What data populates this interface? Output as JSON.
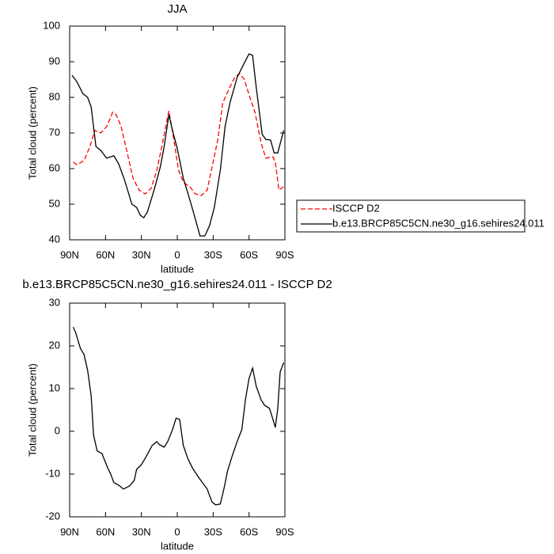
{
  "chart_data": [
    {
      "type": "line",
      "title": "JJA",
      "xlabel": "latitude",
      "ylabel": "Total cloud (percent)",
      "xlim": [
        90,
        -90
      ],
      "ylim": [
        40,
        100
      ],
      "xticks": [
        {
          "value": 90,
          "label": "90N"
        },
        {
          "value": 60,
          "label": "60N"
        },
        {
          "value": 30,
          "label": "30N"
        },
        0,
        {
          "value": -30,
          "label": "30S"
        },
        {
          "value": -60,
          "label": "60S"
        },
        {
          "value": -90,
          "label": "90S"
        }
      ],
      "yticks": [
        40,
        50,
        60,
        70,
        80,
        90,
        100
      ],
      "legend": "right",
      "series": [
        {
          "name": "ISCCP D2",
          "color": "#ff0000",
          "line_style": "dashed",
          "x": [
            87,
            84,
            78,
            73,
            69,
            64,
            59,
            54,
            51,
            47,
            42,
            37,
            32,
            27,
            22,
            17,
            13,
            7,
            3,
            -1,
            -5,
            -11,
            -15,
            -20,
            -25,
            -29,
            -34,
            -38,
            -44,
            -48,
            -52,
            -56,
            -60,
            -65,
            -70,
            -74,
            -80,
            -82,
            -85,
            -89
          ],
          "values": [
            61.8,
            61.1,
            62.2,
            66.2,
            70.7,
            70,
            71.8,
            75.8,
            75.1,
            71.8,
            64.7,
            57.3,
            54,
            52.9,
            54.4,
            59.6,
            66.2,
            76.2,
            68.4,
            59.6,
            56.2,
            54.7,
            52.9,
            52.4,
            54,
            60.2,
            68.4,
            78.4,
            82.9,
            85.6,
            86.7,
            85.1,
            80.7,
            75.8,
            67.3,
            62.9,
            63.3,
            61.8,
            54,
            54.9
          ]
        },
        {
          "name": "b.e13.BRCP85C5CN.ne30_g16.sehires24.011",
          "color": "#000000",
          "line_style": "solid",
          "x": [
            88,
            84,
            79,
            75,
            72,
            70,
            68,
            64,
            59,
            53,
            49,
            44,
            38,
            34,
            31,
            28,
            25,
            19,
            14,
            11,
            7,
            4,
            0,
            -5,
            -11,
            -16,
            -19,
            -23,
            -27,
            -31,
            -36,
            -40,
            -44,
            -50,
            -56,
            -60,
            -63,
            -66,
            -71,
            -74,
            -78,
            -81,
            -84,
            -89
          ],
          "values": [
            86.2,
            84.4,
            81.1,
            80,
            77.3,
            71.8,
            66.2,
            65.1,
            62.9,
            63.6,
            61.3,
            56.7,
            50,
            49.1,
            46.9,
            46.2,
            47.8,
            54.4,
            60.7,
            66.2,
            75.1,
            70.7,
            65.6,
            57.3,
            50.7,
            44.7,
            41.1,
            41.1,
            44,
            49.1,
            59.6,
            71.8,
            78.4,
            85.6,
            89.6,
            92.2,
            91.8,
            82.9,
            69.6,
            68.2,
            68,
            64.4,
            64.4,
            70.7
          ]
        }
      ]
    },
    {
      "type": "line",
      "title": "b.e13.BRCP85C5CN.ne30_g16.sehires24.011 - ISCCP D2",
      "xlabel": "latitude",
      "ylabel": "Total cloud (percent)",
      "xlim": [
        90,
        -90
      ],
      "ylim": [
        -20,
        30
      ],
      "xticks": [
        {
          "value": 90,
          "label": "90N"
        },
        {
          "value": 60,
          "label": "60N"
        },
        {
          "value": 30,
          "label": "30N"
        },
        0,
        {
          "value": -30,
          "label": "30S"
        },
        {
          "value": -60,
          "label": "60S"
        },
        {
          "value": -90,
          "label": "90S"
        }
      ],
      "yticks": [
        -20,
        -10,
        0,
        10,
        20,
        30
      ],
      "series": [
        {
          "color": "#000000",
          "line_style": "solid",
          "x": [
            87,
            85,
            81,
            78,
            75,
            72,
            70,
            67,
            63,
            58,
            56,
            53,
            49,
            45,
            40,
            36,
            34,
            30,
            26,
            21,
            17,
            15,
            11,
            8,
            4,
            1,
            -2,
            -5,
            -9,
            -13,
            -17,
            -21,
            -25,
            -29,
            -32,
            -36,
            -39,
            -42,
            -46,
            -50,
            -54,
            -57,
            -60,
            -63,
            -66,
            -70,
            -73,
            -77,
            -80,
            -82,
            -84,
            -86,
            -89
          ],
          "values": [
            24.4,
            23.1,
            19.4,
            18,
            14.3,
            8.3,
            -0.9,
            -4.6,
            -5.2,
            -8.7,
            -9.8,
            -12,
            -12.6,
            -13.5,
            -12.8,
            -11.5,
            -8.9,
            -7.8,
            -5.9,
            -3.3,
            -2.4,
            -3.1,
            -3.7,
            -2.4,
            0.4,
            3.1,
            2.8,
            -3.3,
            -6.5,
            -8.7,
            -10.4,
            -12,
            -13.5,
            -16.5,
            -17.2,
            -17,
            -13.5,
            -9.3,
            -5.7,
            -2.4,
            0.4,
            7.4,
            12.4,
            14.8,
            10.6,
            7.4,
            6.1,
            5.4,
            2.8,
            0.9,
            5.2,
            13.9,
            16.1
          ]
        }
      ]
    }
  ]
}
